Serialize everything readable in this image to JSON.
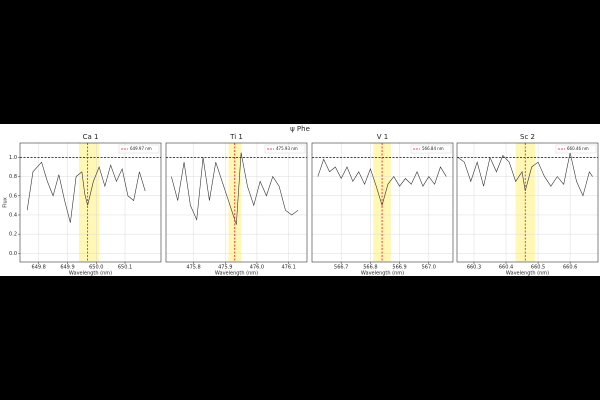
{
  "figure_title": "ψ Phe",
  "chart_data": [
    {
      "type": "line",
      "title": "Ca 1",
      "xlabel": "Wavelength (nm)",
      "ylabel": "Flux",
      "grid": true,
      "xlim": [
        649.735,
        650.225
      ],
      "ylim": [
        -0.09,
        1.15
      ],
      "xticks": [
        649.8,
        649.9,
        {
          "value": 650,
          "label": "650.0"
        },
        650.1
      ],
      "yticks": [
        {
          "value": 0,
          "label": "0.0"
        },
        0.2,
        0.4,
        0.6,
        0.8,
        {
          "value": 1,
          "label": "1.0"
        }
      ],
      "hline": {
        "value": 1,
        "color": "#00008b"
      },
      "vline": {
        "value": 649.97,
        "label": "649.97 nm",
        "color": "#e41a1c"
      },
      "band": {
        "range": [
          649.94,
          650.01
        ],
        "color": "#fff5a0"
      },
      "series": [
        {
          "color": "#333333",
          "x": [
            649.76,
            649.78,
            649.81,
            649.83,
            649.85,
            649.87,
            649.89,
            649.91,
            649.93,
            649.95,
            649.96,
            649.97,
            649.99,
            650.01,
            650.03,
            650.05,
            650.07,
            650.09,
            650.11,
            650.13,
            650.15,
            650.17
          ],
          "values": [
            0.45,
            0.85,
            0.95,
            0.75,
            0.6,
            0.82,
            0.55,
            0.32,
            0.8,
            0.85,
            0.62,
            0.5,
            0.75,
            0.9,
            0.7,
            0.92,
            0.75,
            0.88,
            0.6,
            0.55,
            0.85,
            0.65
          ]
        }
      ]
    },
    {
      "type": "line",
      "title": "Ti 1",
      "xlabel": "Wavelength (nm)",
      "grid": true,
      "xlim": [
        475.713,
        476.158
      ],
      "ylim": [
        -0.09,
        1.15
      ],
      "xticks": [
        475.8,
        475.9,
        {
          "value": 476,
          "label": "476.0"
        },
        476.1
      ],
      "hline": {
        "value": 1,
        "color": "#00008b"
      },
      "vline": {
        "value": 475.93,
        "label": "475.93 nm",
        "color": "#e41a1c"
      },
      "band": {
        "range": [
          475.91,
          475.95
        ],
        "color": "#fff5a0"
      },
      "series": [
        {
          "color": "#333333",
          "x": [
            475.73,
            475.75,
            475.77,
            475.79,
            475.81,
            475.83,
            475.85,
            475.87,
            475.89,
            475.91,
            475.925,
            475.935,
            475.95,
            475.97,
            475.99,
            476.01,
            476.03,
            476.05,
            476.07,
            476.09,
            476.11,
            476.13
          ],
          "values": [
            0.8,
            0.55,
            0.95,
            0.5,
            0.35,
            1.0,
            0.55,
            0.95,
            0.75,
            0.55,
            0.4,
            0.3,
            1.05,
            0.7,
            0.5,
            0.75,
            0.6,
            0.8,
            0.7,
            0.45,
            0.4,
            0.45
          ]
        }
      ]
    },
    {
      "type": "line",
      "title": "V 1",
      "xlabel": "Wavelength (nm)",
      "grid": true,
      "xlim": [
        566.6,
        567.083
      ],
      "ylim": [
        -0.09,
        1.15
      ],
      "xticks": [
        566.7,
        566.8,
        566.9,
        {
          "value": 567,
          "label": "567.0"
        }
      ],
      "hline": {
        "value": 1,
        "color": "#00008b"
      },
      "vline": {
        "value": 566.84,
        "label": "566.84 nm",
        "color": "#e41a1c"
      },
      "band": {
        "range": [
          566.81,
          566.87
        ],
        "color": "#fff5a0"
      },
      "series": [
        {
          "color": "#333333",
          "x": [
            566.62,
            566.64,
            566.66,
            566.68,
            566.7,
            566.72,
            566.74,
            566.76,
            566.78,
            566.8,
            566.82,
            566.84,
            566.86,
            566.88,
            566.9,
            566.92,
            566.94,
            566.96,
            566.98,
            567.0,
            567.02,
            567.04,
            567.06
          ],
          "values": [
            0.8,
            0.98,
            0.85,
            0.9,
            0.78,
            0.9,
            0.75,
            0.85,
            0.72,
            0.88,
            0.7,
            0.5,
            0.72,
            0.8,
            0.7,
            0.78,
            0.72,
            0.85,
            0.7,
            0.8,
            0.72,
            0.9,
            0.8
          ]
        }
      ]
    },
    {
      "type": "line",
      "title": "Sc 2",
      "xlabel": "Wavelength (nm)",
      "grid": true,
      "xlim": [
        660.247,
        660.687
      ],
      "ylim": [
        -0.09,
        1.15
      ],
      "xticks": [
        660.3,
        660.4,
        660.5,
        660.6
      ],
      "hline": {
        "value": 1,
        "color": "#00008b"
      },
      "vline": {
        "value": 660.46,
        "label": "660.46 nm",
        "color": "#e41a1c"
      },
      "band": {
        "range": [
          660.43,
          660.49
        ],
        "color": "#fff5a0"
      },
      "series": [
        {
          "color": "#333333",
          "x": [
            660.25,
            660.27,
            660.29,
            660.31,
            660.33,
            660.35,
            660.37,
            660.39,
            660.41,
            660.43,
            660.45,
            660.46,
            660.48,
            660.5,
            660.52,
            660.54,
            660.56,
            660.58,
            660.6,
            660.62,
            660.64,
            660.66,
            660.67
          ],
          "values": [
            1.0,
            0.95,
            0.75,
            0.95,
            0.7,
            1.0,
            0.85,
            1.02,
            0.95,
            0.75,
            0.85,
            0.65,
            0.9,
            0.95,
            0.8,
            0.7,
            0.8,
            0.72,
            1.05,
            0.75,
            0.6,
            0.85,
            0.8
          ]
        }
      ]
    }
  ]
}
